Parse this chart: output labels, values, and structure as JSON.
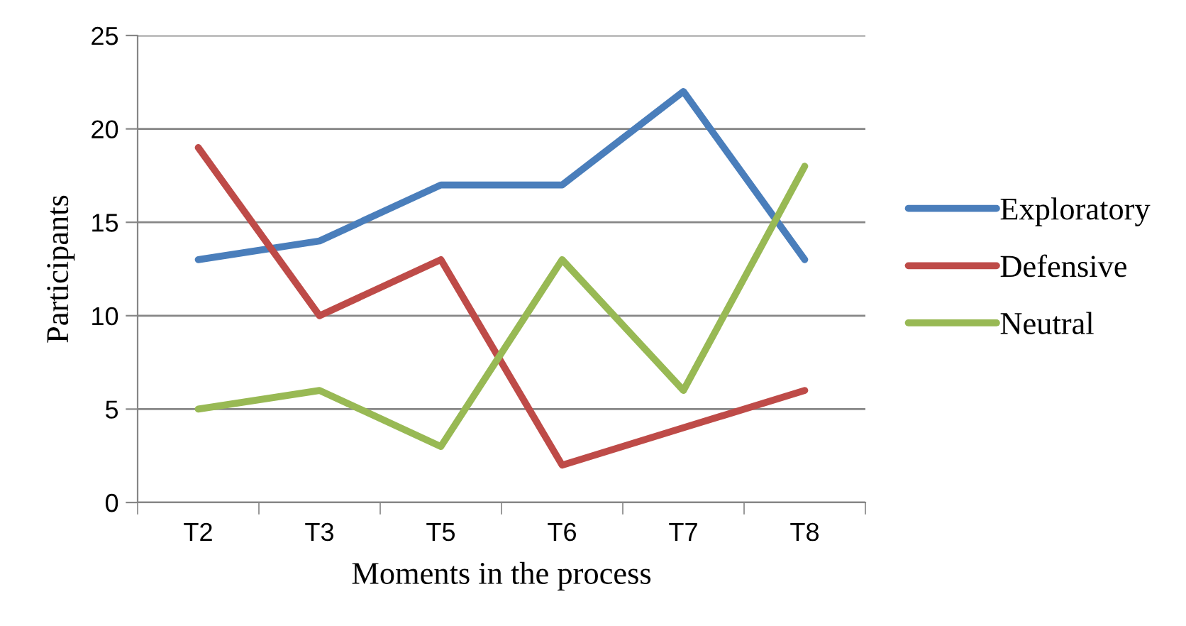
{
  "chart_data": {
    "type": "line",
    "xlabel": "Moments in the process",
    "ylabel": "Participants",
    "categories": [
      "T2",
      "T3",
      "T5",
      "T6",
      "T7",
      "T8"
    ],
    "series": [
      {
        "name": "Exploratory",
        "color": "#4a7ebb",
        "values": [
          13,
          14,
          17,
          17,
          22,
          13
        ]
      },
      {
        "name": "Defensive",
        "color": "#be4b48",
        "values": [
          19,
          10,
          13,
          2,
          4,
          6
        ]
      },
      {
        "name": "Neutral",
        "color": "#98b954",
        "values": [
          5,
          6,
          3,
          13,
          6,
          18
        ]
      }
    ],
    "ylim": [
      0,
      25
    ],
    "yticks": [
      0,
      5,
      10,
      15,
      20,
      25
    ],
    "grid": "y",
    "legend": "right",
    "marker": "none",
    "line_style": "solid"
  }
}
